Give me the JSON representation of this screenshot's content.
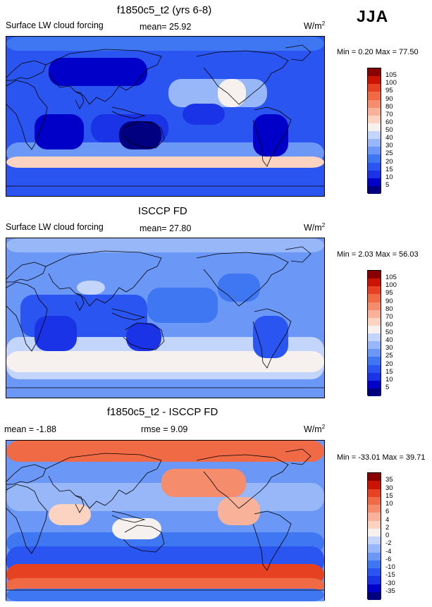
{
  "season": "JJA",
  "unit_text": "W/m",
  "unit_sup": "2",
  "panels": [
    {
      "title": "f1850c5_t2 (yrs 6-8)",
      "left_label": "Surface LW cloud forcing",
      "stat_text": "mean=  25.92",
      "minmax_text": "Min =   0.20 Max =  77.50",
      "palette": "abs"
    },
    {
      "title": "ISCCP FD",
      "left_label": "Surface LW cloud forcing",
      "stat_text": "mean=  27.80",
      "minmax_text": "Min =   2.03 Max =  56.03",
      "palette": "abs"
    },
    {
      "title": "f1850c5_t2 - ISCCP FD",
      "left_label": "mean =  -1.88",
      "stat_text": "rmse =   9.09",
      "minmax_text": "Min = -33.01 Max =  39.71",
      "palette": "diff"
    }
  ],
  "chart_data": [
    {
      "type": "heatmap",
      "title": "f1850c5_t2 (yrs 6-8)",
      "variable": "Surface LW cloud forcing",
      "units": "W/m2",
      "mean": 25.92,
      "min": 0.2,
      "max": 77.5,
      "colorbar_levels": [
        5,
        10,
        15,
        20,
        25,
        30,
        40,
        50,
        60,
        70,
        80,
        90,
        95,
        100,
        105
      ]
    },
    {
      "type": "heatmap",
      "title": "ISCCP FD",
      "variable": "Surface LW cloud forcing",
      "units": "W/m2",
      "mean": 27.8,
      "min": 2.03,
      "max": 56.03,
      "colorbar_levels": [
        5,
        10,
        15,
        20,
        25,
        30,
        40,
        50,
        60,
        70,
        80,
        90,
        95,
        100,
        105
      ]
    },
    {
      "type": "heatmap",
      "title": "f1850c5_t2 - ISCCP FD",
      "units": "W/m2",
      "mean": -1.88,
      "rmse": 9.09,
      "min": -33.01,
      "max": 39.71,
      "colorbar_levels": [
        -35,
        -30,
        -15,
        -10,
        -6,
        -4,
        -2,
        0,
        2,
        4,
        6,
        10,
        15,
        30,
        35
      ]
    }
  ],
  "colors": {
    "abs": [
      "#000080",
      "#0000c8",
      "#1a33e6",
      "#2a55f0",
      "#3f77f3",
      "#6b98f6",
      "#97b7f8",
      "#c4d5fb",
      "#f6f0ee",
      "#fcd2c0",
      "#f9b29a",
      "#f58d6d",
      "#f06a45",
      "#e64120",
      "#c81400",
      "#8a0000"
    ],
    "diff": [
      "#000080",
      "#0000c8",
      "#1a33e6",
      "#2a55f0",
      "#3f77f3",
      "#6b98f6",
      "#97b7f8",
      "#c4d5fb",
      "#f6f0ee",
      "#fcd2c0",
      "#f9b29a",
      "#f58d6d",
      "#f06a45",
      "#e64120",
      "#c81400",
      "#8a0000"
    ]
  }
}
